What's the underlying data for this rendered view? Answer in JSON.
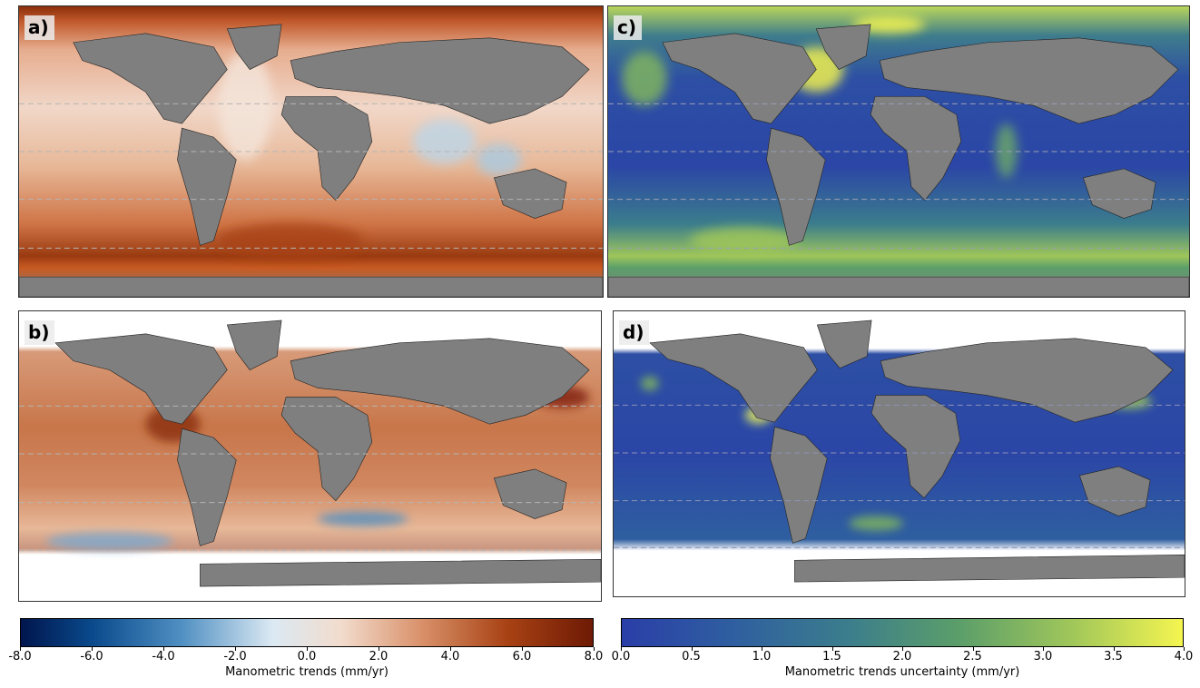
{
  "chart_data": [
    {
      "type": "heatmap",
      "panel": "a)",
      "title": "",
      "description_variable": "Manometric trends (mm/yr)",
      "ocean_mask": "global ocean (model grid)",
      "colormap": [
        "#00154d",
        "#0a4a8c",
        "#4f8fc2",
        "#dbe9f3",
        "#f2dccd",
        "#d9916a",
        "#a84214",
        "#6e1a05"
      ],
      "range": [
        -8.0,
        8.0
      ]
    },
    {
      "type": "heatmap",
      "panel": "b)",
      "title": "",
      "description_variable": "Manometric trends (mm/yr)",
      "ocean_mask": "global ocean (observations, ice-free)",
      "colormap": [
        "#00154d",
        "#0a4a8c",
        "#4f8fc2",
        "#dbe9f3",
        "#f2dccd",
        "#d9916a",
        "#a84214",
        "#6e1a05"
      ],
      "range": [
        -8.0,
        8.0
      ]
    },
    {
      "type": "heatmap",
      "panel": "c)",
      "title": "",
      "description_variable": "Manometric trends uncertainty (mm/yr)",
      "ocean_mask": "global ocean (model grid)",
      "colormap": [
        "#2a3ea8",
        "#2f5fa0",
        "#3b7d8c",
        "#5b9e6a",
        "#9fc65a",
        "#f5f550"
      ],
      "range": [
        0.0,
        4.0
      ]
    },
    {
      "type": "heatmap",
      "panel": "d)",
      "title": "",
      "description_variable": "Manometric trends uncertainty (mm/yr)",
      "ocean_mask": "global ocean (observations, ice-free)",
      "colormap": [
        "#2a3ea8",
        "#2f5fa0",
        "#3b7d8c",
        "#5b9e6a",
        "#9fc65a",
        "#f5f550"
      ],
      "range": [
        0.0,
        4.0
      ]
    }
  ],
  "panels": {
    "a": {
      "label": "a)"
    },
    "b": {
      "label": "b)"
    },
    "c": {
      "label": "c)"
    },
    "d": {
      "label": "d)"
    }
  },
  "colorbars": {
    "left": {
      "label": "Manometric trends (mm/yr)",
      "ticks": [
        "-8.0",
        "-6.0",
        "-4.0",
        "-2.0",
        "0.0",
        "2.0",
        "4.0",
        "6.0",
        "8.0"
      ],
      "range": [
        -8.0,
        8.0
      ]
    },
    "right": {
      "label": "Manometric trends uncertainty (mm/yr)",
      "ticks": [
        "0.0",
        "0.5",
        "1.0",
        "1.5",
        "2.0",
        "2.5",
        "3.0",
        "3.5",
        "4.0"
      ],
      "range": [
        0.0,
        4.0
      ]
    }
  },
  "colors": {
    "land": "#7f7f7f",
    "no_data": "#ffffff",
    "grid": "#b5b5b5"
  }
}
